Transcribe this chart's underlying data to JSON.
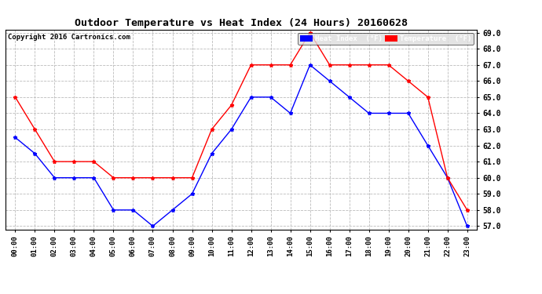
{
  "title": "Outdoor Temperature vs Heat Index (24 Hours) 20160628",
  "copyright": "Copyright 2016 Cartronics.com",
  "hours": [
    "00:00",
    "01:00",
    "02:00",
    "03:00",
    "04:00",
    "05:00",
    "06:00",
    "07:00",
    "08:00",
    "09:00",
    "10:00",
    "11:00",
    "12:00",
    "13:00",
    "14:00",
    "15:00",
    "16:00",
    "17:00",
    "18:00",
    "19:00",
    "20:00",
    "21:00",
    "22:00",
    "23:00"
  ],
  "temperature": [
    65.0,
    63.0,
    61.0,
    61.0,
    61.0,
    60.0,
    60.0,
    60.0,
    60.0,
    60.0,
    63.0,
    64.5,
    67.0,
    67.0,
    67.0,
    69.0,
    67.0,
    67.0,
    67.0,
    67.0,
    66.0,
    65.0,
    60.0,
    58.0
  ],
  "heat_index": [
    62.5,
    61.5,
    60.0,
    60.0,
    60.0,
    58.0,
    58.0,
    57.0,
    58.0,
    59.0,
    61.5,
    63.0,
    65.0,
    65.0,
    64.0,
    67.0,
    66.0,
    65.0,
    64.0,
    64.0,
    64.0,
    62.0,
    60.0,
    57.0
  ],
  "temp_color": "#ff0000",
  "heat_color": "#0000ff",
  "ylim_min": 57.0,
  "ylim_max": 69.0,
  "ytick_step": 1.0,
  "bg_color": "#ffffff",
  "grid_color": "#bbbbbb",
  "legend_heat_bg": "#0000ff",
  "legend_temp_bg": "#ff0000",
  "legend_text_color": "#ffffff",
  "fig_width": 6.9,
  "fig_height": 3.75,
  "dpi": 100
}
